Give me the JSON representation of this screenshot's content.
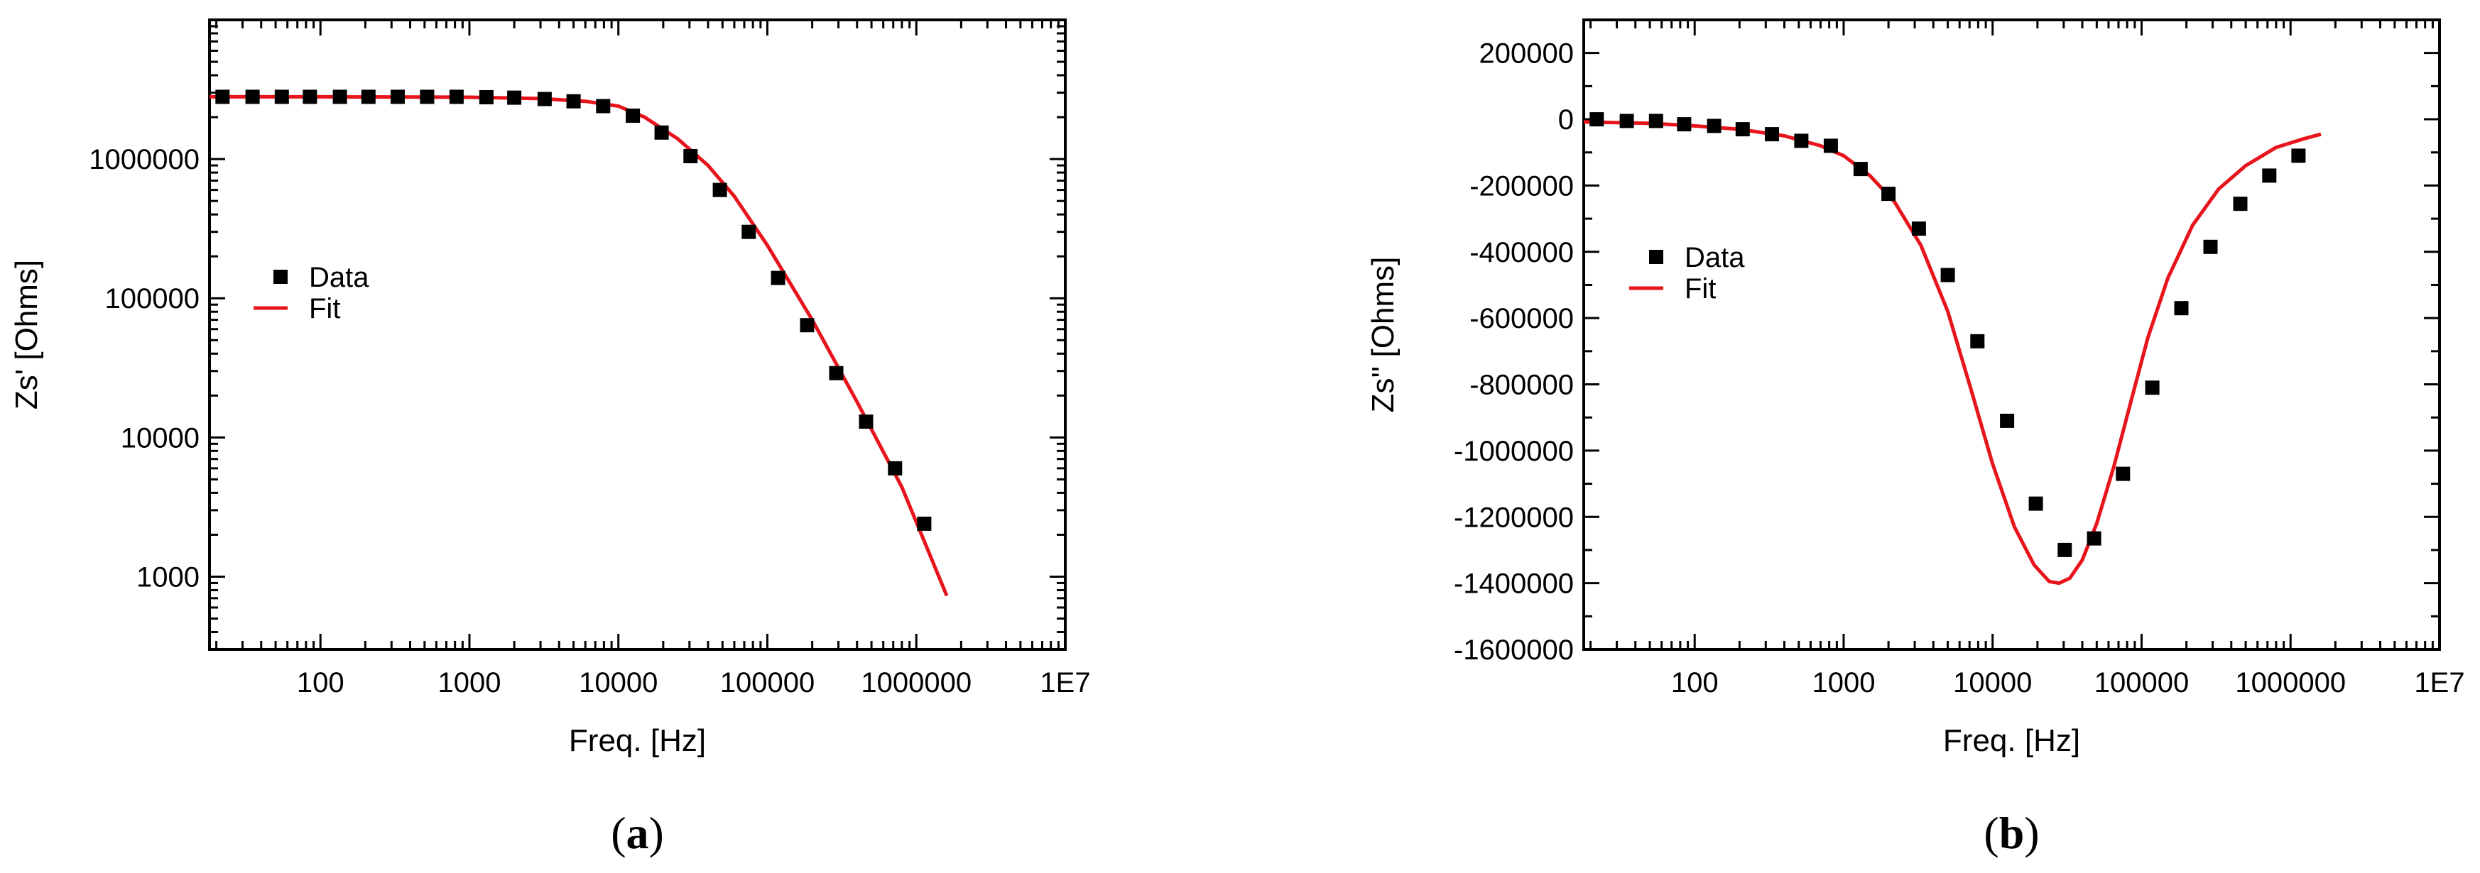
{
  "colors": {
    "data": "#000000",
    "fit": "#e8141c",
    "axis": "#000000"
  },
  "chart_data": [
    {
      "type": "scatter",
      "panel_label": {
        "open": "(",
        "letter": "a",
        "close": ")"
      },
      "xlabel": "Freq. [Hz]",
      "ylabel": "Zs' [Ohms]",
      "x_scale": "log",
      "y_scale": "log",
      "xlim": [
        18,
        10000000
      ],
      "ylim": [
        300,
        10000000
      ],
      "x_ticks": [
        {
          "value": 100,
          "label": "100"
        },
        {
          "value": 1000,
          "label": "1000"
        },
        {
          "value": 10000,
          "label": "10000"
        },
        {
          "value": 100000,
          "label": "100000"
        },
        {
          "value": 1000000,
          "label": "1000000"
        },
        {
          "value": 10000000,
          "label": "1E7"
        }
      ],
      "y_ticks": [
        {
          "value": 1000,
          "label": "1000"
        },
        {
          "value": 10000,
          "label": "10000"
        },
        {
          "value": 100000,
          "label": "100000"
        },
        {
          "value": 1000000,
          "label": "1000000"
        }
      ],
      "legend": {
        "position": "center-left",
        "entries": [
          "Data",
          "Fit"
        ]
      },
      "series": [
        {
          "name": "Data",
          "kind": "scatter",
          "x": [
            22,
            35,
            55,
            85,
            135,
            210,
            330,
            520,
            820,
            1300,
            2000,
            3200,
            5000,
            7900,
            12500,
            19500,
            30500,
            48000,
            75000,
            118000,
            185000,
            290000,
            460000,
            720000,
            1130000
          ],
          "y": [
            2800000,
            2800000,
            2800000,
            2800000,
            2800000,
            2800000,
            2800000,
            2800000,
            2800000,
            2780000,
            2760000,
            2700000,
            2600000,
            2400000,
            2050000,
            1550000,
            1050000,
            600000,
            300000,
            140000,
            64000,
            29000,
            13000,
            6000,
            2400
          ]
        },
        {
          "name": "Fit",
          "kind": "line",
          "x": [
            18,
            100,
            1000,
            3000,
            6000,
            10000,
            15000,
            25000,
            40000,
            60000,
            100000,
            200000,
            400000,
            800000,
            1600000
          ],
          "y": [
            2800000,
            2800000,
            2780000,
            2720000,
            2600000,
            2400000,
            2000000,
            1400000,
            900000,
            540000,
            240000,
            70000,
            18000,
            4400,
            730
          ]
        }
      ]
    },
    {
      "type": "scatter",
      "panel_label": {
        "open": "(",
        "letter": "b",
        "close": ")"
      },
      "xlabel": "Freq. [Hz]",
      "ylabel": "Zs'' [Ohms]",
      "x_scale": "log",
      "y_scale": "linear",
      "xlim": [
        18,
        10000000
      ],
      "ylim": [
        -1600000,
        300000
      ],
      "x_ticks": [
        {
          "value": 100,
          "label": "100"
        },
        {
          "value": 1000,
          "label": "1000"
        },
        {
          "value": 10000,
          "label": "10000"
        },
        {
          "value": 100000,
          "label": "100000"
        },
        {
          "value": 1000000,
          "label": "1000000"
        },
        {
          "value": 10000000,
          "label": "1E7"
        }
      ],
      "y_ticks": [
        {
          "value": 200000,
          "label": "200000"
        },
        {
          "value": 0,
          "label": "0"
        },
        {
          "value": -200000,
          "label": "-200000"
        },
        {
          "value": -400000,
          "label": "-400000"
        },
        {
          "value": -600000,
          "label": "-600000"
        },
        {
          "value": -800000,
          "label": "-800000"
        },
        {
          "value": -1000000,
          "label": "-1000000"
        },
        {
          "value": -1200000,
          "label": "-1200000"
        },
        {
          "value": -1400000,
          "label": "-1400000"
        },
        {
          "value": -1600000,
          "label": "-1600000"
        }
      ],
      "legend": {
        "position": "center-left",
        "entries": [
          "Data",
          "Fit"
        ]
      },
      "series": [
        {
          "name": "Data",
          "kind": "scatter",
          "x": [
            22,
            35,
            55,
            85,
            135,
            210,
            330,
            520,
            820,
            1300,
            2000,
            3200,
            5000,
            7900,
            12500,
            19500,
            30500,
            48000,
            75000,
            118000,
            185000,
            290000,
            460000,
            720000,
            1130000
          ],
          "y": [
            0,
            -5000,
            -5000,
            -15000,
            -20000,
            -30000,
            -45000,
            -65000,
            -80000,
            -150000,
            -225000,
            -330000,
            -470000,
            -670000,
            -910000,
            -1160000,
            -1300000,
            -1265000,
            -1070000,
            -810000,
            -570000,
            -385000,
            -255000,
            -170000,
            -110000
          ]
        },
        {
          "name": "Fit",
          "kind": "line",
          "x": [
            18,
            50,
            100,
            200,
            400,
            700,
            1000,
            1500,
            2200,
            3300,
            5000,
            7000,
            10000,
            14000,
            19000,
            24000,
            28000,
            33000,
            40000,
            50000,
            65000,
            85000,
            110000,
            150000,
            220000,
            330000,
            500000,
            800000,
            1200000,
            1600000
          ],
          "y": [
            -8000,
            -12000,
            -20000,
            -30000,
            -50000,
            -80000,
            -110000,
            -170000,
            -250000,
            -380000,
            -580000,
            -800000,
            -1040000,
            -1230000,
            -1345000,
            -1395000,
            -1400000,
            -1385000,
            -1330000,
            -1220000,
            -1050000,
            -850000,
            -660000,
            -480000,
            -320000,
            -210000,
            -140000,
            -85000,
            -60000,
            -45000
          ]
        }
      ]
    }
  ]
}
